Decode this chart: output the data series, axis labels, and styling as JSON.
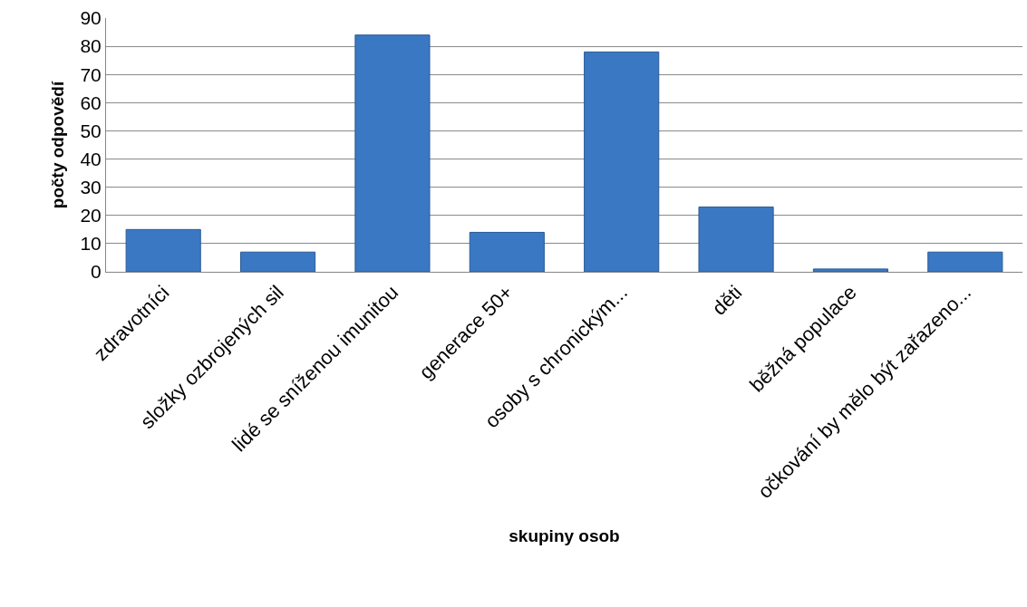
{
  "chart_data": {
    "type": "bar",
    "xlabel": "skupiny osob",
    "ylabel": "počty odpovědí",
    "categories": [
      "zdravotníci",
      "složky ozbrojených sil",
      "lidé se sníženou imunitou",
      "generace 50+",
      "osoby s chronickým...",
      "děti",
      "běžná populace",
      "očkování by mělo být zařazeno..."
    ],
    "values": [
      15,
      7,
      84,
      14,
      78,
      23,
      1,
      7
    ],
    "color": "#3b78c4",
    "ylim": [
      0,
      90
    ],
    "yticks": [
      0,
      10,
      20,
      30,
      40,
      50,
      60,
      70,
      80,
      90
    ],
    "grid": "y"
  }
}
